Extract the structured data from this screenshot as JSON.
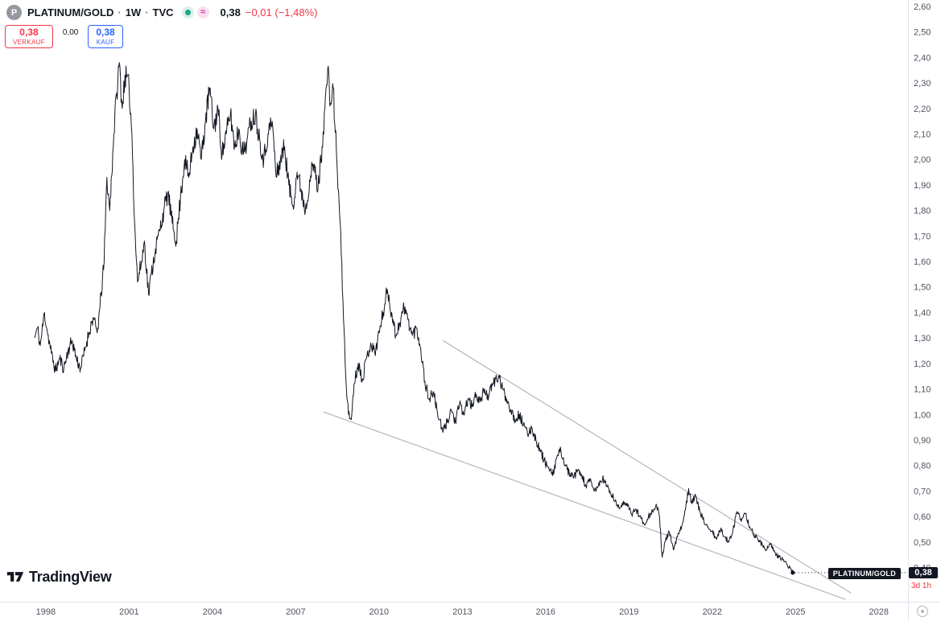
{
  "header": {
    "symbol_logo_letter": "P",
    "symbol": "PLATINUM/GOLD",
    "separator": "·",
    "interval": "1W",
    "exchange": "TVC",
    "last_price": "0,38",
    "change": "−0,01 (−1,48%)",
    "approx_glyph": "≈",
    "accent_red": "#F23645",
    "accent_blue": "#2962FF"
  },
  "trade_panel": {
    "sell_price": "0,38",
    "sell_label": "VERKAUF",
    "spread": "0,00",
    "buy_price": "0,38",
    "buy_label": "KAUF"
  },
  "price_labels": {
    "series_tag": "PLATINUM/GOLD",
    "last_price": "0,38",
    "countdown": "3d 1h"
  },
  "footer": {
    "logo_text": "TradingView"
  },
  "chart_data": {
    "type": "line",
    "title": "PLATINUM/GOLD weekly ratio chart",
    "line_color": "#131722",
    "trendline_color": "#B2B5BE",
    "grid": false,
    "x_axis": {
      "ticks": [
        1998,
        2001,
        2004,
        2007,
        2010,
        2013,
        2016,
        2019,
        2022,
        2025,
        2028
      ],
      "range": [
        1996.35,
        2029.05
      ]
    },
    "y_axis": {
      "ticks": [
        2.6,
        2.5,
        2.4,
        2.3,
        2.2,
        2.1,
        2.0,
        1.9,
        1.8,
        1.7,
        1.6,
        1.5,
        1.4,
        1.3,
        1.2,
        1.1,
        1.0,
        0.9,
        0.8,
        0.7,
        0.6,
        0.5,
        0.4
      ],
      "range": [
        0.266,
        2.625
      ],
      "decimal": "comma"
    },
    "trendlines": [
      {
        "name": "upper",
        "from": [
          2012.3,
          1.29
        ],
        "to": [
          2027.0,
          0.3
        ]
      },
      {
        "name": "lower",
        "from": [
          2008.0,
          1.01
        ],
        "to": [
          2026.8,
          0.275
        ]
      }
    ],
    "last_point": {
      "t": 2024.9,
      "v": 0.38
    },
    "series_points": [
      [
        1997.6,
        1.3
      ],
      [
        1997.7,
        1.34
      ],
      [
        1997.8,
        1.27
      ],
      [
        1997.95,
        1.4
      ],
      [
        1998.05,
        1.33
      ],
      [
        1998.2,
        1.24
      ],
      [
        1998.35,
        1.17
      ],
      [
        1998.5,
        1.22
      ],
      [
        1998.65,
        1.18
      ],
      [
        1998.8,
        1.25
      ],
      [
        1998.95,
        1.29
      ],
      [
        1999.1,
        1.22
      ],
      [
        1999.25,
        1.18
      ],
      [
        1999.4,
        1.25
      ],
      [
        1999.55,
        1.32
      ],
      [
        1999.7,
        1.38
      ],
      [
        1999.85,
        1.32
      ],
      [
        1999.95,
        1.42
      ],
      [
        2000.1,
        1.6
      ],
      [
        2000.2,
        1.93
      ],
      [
        2000.3,
        1.8
      ],
      [
        2000.45,
        2.1
      ],
      [
        2000.55,
        2.26
      ],
      [
        2000.65,
        2.38
      ],
      [
        2000.75,
        2.2
      ],
      [
        2000.85,
        2.33
      ],
      [
        2001.0,
        2.28
      ],
      [
        2001.1,
        2.1
      ],
      [
        2001.2,
        1.75
      ],
      [
        2001.3,
        1.52
      ],
      [
        2001.45,
        1.6
      ],
      [
        2001.55,
        1.68
      ],
      [
        2001.7,
        1.47
      ],
      [
        2001.8,
        1.55
      ],
      [
        2001.95,
        1.65
      ],
      [
        2002.1,
        1.72
      ],
      [
        2002.25,
        1.8
      ],
      [
        2002.4,
        1.87
      ],
      [
        2002.55,
        1.75
      ],
      [
        2002.7,
        1.68
      ],
      [
        2002.85,
        1.85
      ],
      [
        2003.0,
        2.0
      ],
      [
        2003.15,
        1.93
      ],
      [
        2003.3,
        2.05
      ],
      [
        2003.45,
        2.12
      ],
      [
        2003.6,
        2.0
      ],
      [
        2003.75,
        2.15
      ],
      [
        2003.9,
        2.28
      ],
      [
        2004.05,
        2.12
      ],
      [
        2004.2,
        2.2
      ],
      [
        2004.35,
        2.02
      ],
      [
        2004.5,
        2.1
      ],
      [
        2004.65,
        2.18
      ],
      [
        2004.8,
        2.05
      ],
      [
        2004.95,
        2.12
      ],
      [
        2005.1,
        2.02
      ],
      [
        2005.25,
        2.08
      ],
      [
        2005.4,
        2.15
      ],
      [
        2005.55,
        2.18
      ],
      [
        2005.7,
        2.08
      ],
      [
        2005.85,
        2.0
      ],
      [
        2006.0,
        2.1
      ],
      [
        2006.15,
        2.15
      ],
      [
        2006.3,
        1.93
      ],
      [
        2006.45,
        2.0
      ],
      [
        2006.6,
        2.05
      ],
      [
        2006.75,
        1.9
      ],
      [
        2006.9,
        1.82
      ],
      [
        2007.05,
        1.95
      ],
      [
        2007.2,
        1.88
      ],
      [
        2007.35,
        1.8
      ],
      [
        2007.5,
        1.92
      ],
      [
        2007.65,
        1.98
      ],
      [
        2007.8,
        1.88
      ],
      [
        2007.95,
        2.05
      ],
      [
        2008.05,
        2.2
      ],
      [
        2008.15,
        2.35
      ],
      [
        2008.25,
        2.22
      ],
      [
        2008.35,
        2.28
      ],
      [
        2008.5,
        1.95
      ],
      [
        2008.6,
        1.75
      ],
      [
        2008.7,
        1.45
      ],
      [
        2008.8,
        1.15
      ],
      [
        2008.9,
        1.0
      ],
      [
        2009.0,
        0.98
      ],
      [
        2009.1,
        1.12
      ],
      [
        2009.25,
        1.2
      ],
      [
        2009.4,
        1.14
      ],
      [
        2009.55,
        1.22
      ],
      [
        2009.7,
        1.28
      ],
      [
        2009.85,
        1.24
      ],
      [
        2010.0,
        1.32
      ],
      [
        2010.15,
        1.4
      ],
      [
        2010.3,
        1.49
      ],
      [
        2010.45,
        1.4
      ],
      [
        2010.6,
        1.31
      ],
      [
        2010.75,
        1.36
      ],
      [
        2010.9,
        1.42
      ],
      [
        2011.05,
        1.37
      ],
      [
        2011.2,
        1.31
      ],
      [
        2011.35,
        1.34
      ],
      [
        2011.5,
        1.26
      ],
      [
        2011.65,
        1.13
      ],
      [
        2011.8,
        1.06
      ],
      [
        2011.95,
        1.09
      ],
      [
        2012.1,
        1.01
      ],
      [
        2012.3,
        0.93
      ],
      [
        2012.45,
        0.97
      ],
      [
        2012.6,
        1.02
      ],
      [
        2012.75,
        0.97
      ],
      [
        2012.9,
        1.04
      ],
      [
        2013.05,
        1.0
      ],
      [
        2013.2,
        1.06
      ],
      [
        2013.35,
        1.03
      ],
      [
        2013.5,
        1.08
      ],
      [
        2013.65,
        1.05
      ],
      [
        2013.8,
        1.1
      ],
      [
        2013.95,
        1.07
      ],
      [
        2014.1,
        1.12
      ],
      [
        2014.3,
        1.15
      ],
      [
        2014.45,
        1.1
      ],
      [
        2014.6,
        1.06
      ],
      [
        2014.75,
        1.02
      ],
      [
        2014.9,
        0.98
      ],
      [
        2015.05,
        1.0
      ],
      [
        2015.2,
        0.96
      ],
      [
        2015.35,
        0.92
      ],
      [
        2015.5,
        0.95
      ],
      [
        2015.65,
        0.9
      ],
      [
        2015.8,
        0.86
      ],
      [
        2015.95,
        0.82
      ],
      [
        2016.1,
        0.79
      ],
      [
        2016.25,
        0.76
      ],
      [
        2016.4,
        0.83
      ],
      [
        2016.55,
        0.86
      ],
      [
        2016.7,
        0.8
      ],
      [
        2016.85,
        0.77
      ],
      [
        2017.0,
        0.75
      ],
      [
        2017.15,
        0.78
      ],
      [
        2017.3,
        0.76
      ],
      [
        2017.45,
        0.72
      ],
      [
        2017.6,
        0.74
      ],
      [
        2017.75,
        0.7
      ],
      [
        2017.9,
        0.72
      ],
      [
        2018.05,
        0.75
      ],
      [
        2018.2,
        0.72
      ],
      [
        2018.35,
        0.69
      ],
      [
        2018.5,
        0.66
      ],
      [
        2018.65,
        0.63
      ],
      [
        2018.8,
        0.66
      ],
      [
        2018.95,
        0.64
      ],
      [
        2019.1,
        0.61
      ],
      [
        2019.25,
        0.63
      ],
      [
        2019.4,
        0.6
      ],
      [
        2019.55,
        0.57
      ],
      [
        2019.7,
        0.6
      ],
      [
        2019.85,
        0.62
      ],
      [
        2020.0,
        0.64
      ],
      [
        2020.1,
        0.6
      ],
      [
        2020.2,
        0.44
      ],
      [
        2020.3,
        0.5
      ],
      [
        2020.45,
        0.54
      ],
      [
        2020.6,
        0.47
      ],
      [
        2020.75,
        0.52
      ],
      [
        2020.9,
        0.56
      ],
      [
        2021.05,
        0.64
      ],
      [
        2021.15,
        0.71
      ],
      [
        2021.25,
        0.66
      ],
      [
        2021.4,
        0.68
      ],
      [
        2021.55,
        0.62
      ],
      [
        2021.7,
        0.58
      ],
      [
        2021.85,
        0.56
      ],
      [
        2022.0,
        0.54
      ],
      [
        2022.15,
        0.51
      ],
      [
        2022.3,
        0.55
      ],
      [
        2022.45,
        0.52
      ],
      [
        2022.6,
        0.5
      ],
      [
        2022.75,
        0.55
      ],
      [
        2022.9,
        0.62
      ],
      [
        2023.05,
        0.58
      ],
      [
        2023.2,
        0.61
      ],
      [
        2023.35,
        0.56
      ],
      [
        2023.5,
        0.53
      ],
      [
        2023.65,
        0.51
      ],
      [
        2023.8,
        0.49
      ],
      [
        2023.95,
        0.47
      ],
      [
        2024.1,
        0.49
      ],
      [
        2024.25,
        0.46
      ],
      [
        2024.4,
        0.44
      ],
      [
        2024.55,
        0.43
      ],
      [
        2024.7,
        0.41
      ],
      [
        2024.8,
        0.4
      ],
      [
        2024.9,
        0.38
      ]
    ]
  }
}
